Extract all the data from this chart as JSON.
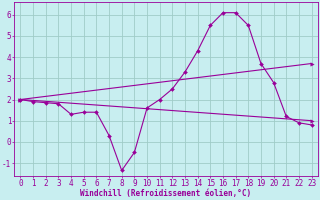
{
  "title": "",
  "xlabel": "Windchill (Refroidissement éolien,°C)",
  "background_color": "#c8eef0",
  "grid_color": "#a0ccc8",
  "line_color": "#990099",
  "spine_color": "#990099",
  "xlim": [
    -0.5,
    23.5
  ],
  "ylim": [
    -1.6,
    6.6
  ],
  "xticks": [
    0,
    1,
    2,
    3,
    4,
    5,
    6,
    7,
    8,
    9,
    10,
    11,
    12,
    13,
    14,
    15,
    16,
    17,
    18,
    19,
    20,
    21,
    22,
    23
  ],
  "yticks": [
    -1,
    0,
    1,
    2,
    3,
    4,
    5,
    6
  ],
  "series1_x": [
    0,
    1,
    2,
    3,
    4,
    5,
    6,
    7,
    8,
    9,
    10,
    11,
    12,
    13,
    14,
    15,
    16,
    17,
    18,
    19,
    20,
    21,
    22,
    23
  ],
  "series1_y": [
    2.0,
    1.9,
    1.85,
    1.8,
    1.3,
    1.4,
    1.4,
    0.3,
    -1.35,
    -0.5,
    1.6,
    2.0,
    2.5,
    3.3,
    4.3,
    5.5,
    6.1,
    6.1,
    5.5,
    3.7,
    2.8,
    1.2,
    0.9,
    0.8
  ],
  "series2_x": [
    0,
    23
  ],
  "series2_y": [
    2.0,
    1.0
  ],
  "series3_x": [
    0,
    23
  ],
  "series3_y": [
    2.0,
    3.7
  ],
  "xlabel_fontsize": 5.5,
  "tick_fontsize": 5.5,
  "linewidth": 0.8,
  "markersize": 2.0
}
